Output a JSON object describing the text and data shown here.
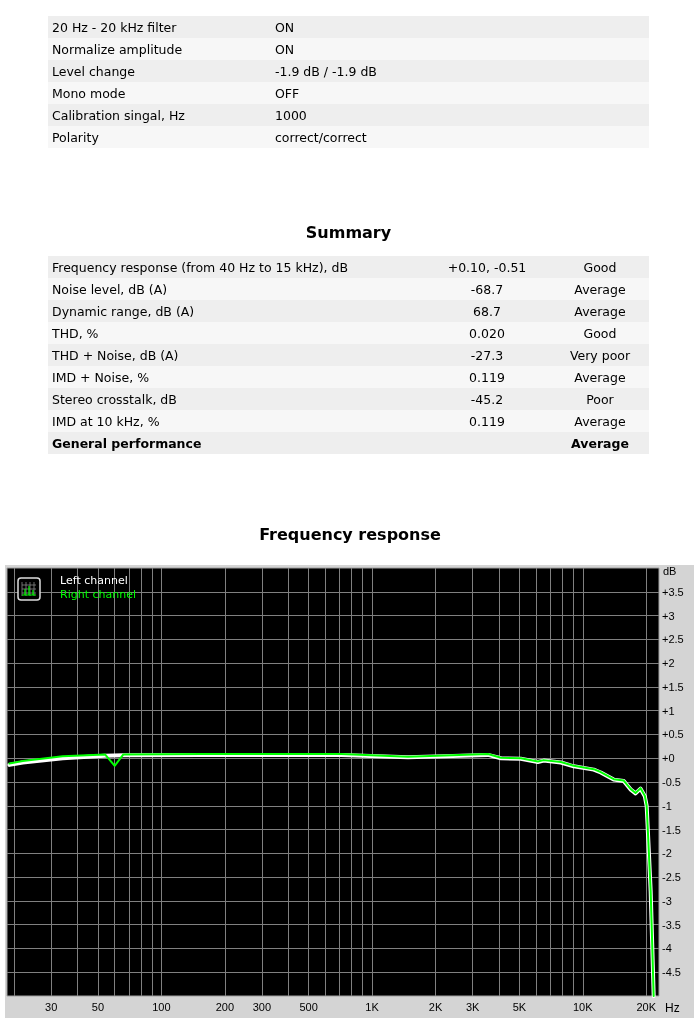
{
  "chart_data": [
    {
      "type": "other",
      "categories": [
        "20 Hz - 20 kHz filter",
        "Normalize amplitude",
        "Level change",
        "Mono mode",
        "Calibration singal, Hz",
        "Polarity"
      ],
      "cell_labels": [
        [
          "ON"
        ],
        [
          "ON"
        ],
        [
          "-1.9 dB / -1.9 dB"
        ],
        [
          "OFF"
        ],
        [
          "1000"
        ],
        [
          "correct/correct"
        ]
      ]
    },
    {
      "type": "other",
      "title": "Summary",
      "categories": [
        "Frequency response (from 40 Hz to 15 kHz), dB",
        "Noise level, dB (A)",
        "Dynamic range, dB (A)",
        "THD, %",
        "THD + Noise, dB (A)",
        "IMD + Noise, %",
        "Stereo crosstalk, dB",
        "IMD at 10 kHz, %",
        "General performance"
      ],
      "cell_labels": [
        [
          "+0.10, -0.51",
          "Good"
        ],
        [
          "-68.7",
          "Average"
        ],
        [
          "68.7",
          "Average"
        ],
        [
          "0.020",
          "Good"
        ],
        [
          "-27.3",
          "Very poor"
        ],
        [
          "0.119",
          "Average"
        ],
        [
          "-45.2",
          "Poor"
        ],
        [
          "0.119",
          "Average"
        ],
        [
          null,
          "Average"
        ]
      ]
    },
    {
      "type": "line",
      "title": "Frequency response",
      "xlabel": "Hz",
      "ylabel": "dB",
      "log": "x",
      "grid": true,
      "legend": "top left",
      "marker": "none",
      "line_style": "solid",
      "xlim": [
        18.5,
        23000
      ],
      "xticks": [
        {
          "value": 20,
          "label": null
        },
        30,
        {
          "value": 40,
          "label": null
        },
        50,
        {
          "value": 60,
          "label": null
        },
        {
          "value": 70,
          "label": null
        },
        {
          "value": 80,
          "label": null
        },
        {
          "value": 90,
          "label": null
        },
        100,
        200,
        300,
        {
          "value": 400,
          "label": null
        },
        500,
        {
          "value": 600,
          "label": null
        },
        {
          "value": 700,
          "label": null
        },
        {
          "value": 800,
          "label": null
        },
        {
          "value": 900,
          "label": null
        },
        {
          "value": 1000,
          "label": "1K"
        },
        {
          "value": 2000,
          "label": "2K"
        },
        {
          "value": 3000,
          "label": "3K"
        },
        {
          "value": 4000,
          "label": null
        },
        {
          "value": 5000,
          "label": "5K"
        },
        {
          "value": 6000,
          "label": null
        },
        {
          "value": 7000,
          "label": null
        },
        {
          "value": 8000,
          "label": null
        },
        {
          "value": 9000,
          "label": null
        },
        {
          "value": 10000,
          "label": "10K"
        },
        {
          "value": 20000,
          "label": "20K"
        }
      ],
      "ylim": [
        -5,
        4
      ],
      "yticks": [
        {
          "value": -4.5,
          "label": "-4.5"
        },
        {
          "value": -4,
          "label": "-4"
        },
        {
          "value": -3.5,
          "label": "-3.5"
        },
        {
          "value": -3,
          "label": "-3"
        },
        {
          "value": -2.5,
          "label": "-2.5"
        },
        {
          "value": -2,
          "label": "-2"
        },
        {
          "value": -1.5,
          "label": "-1.5"
        },
        {
          "value": -1,
          "label": "-1"
        },
        {
          "value": -0.5,
          "label": "-0.5"
        },
        {
          "value": 0,
          "label": "+0"
        },
        {
          "value": 0.5,
          "label": "+0.5"
        },
        {
          "value": 1,
          "label": "+1"
        },
        {
          "value": 1.5,
          "label": "+1.5"
        },
        {
          "value": 2,
          "label": "+2"
        },
        {
          "value": 2.5,
          "label": "+2.5"
        },
        {
          "value": 3,
          "label": "+3"
        },
        {
          "value": 3.5,
          "label": "+3.5"
        }
      ],
      "series": [
        {
          "name": "Left channel",
          "color": "#ffffff",
          "x": [
            19,
            22,
            34,
            54,
            66,
            155,
            461,
            713,
            1480,
            3550,
            4090,
            5080,
            6120,
            6520,
            7870,
            9060,
            11270,
            12170,
            14020,
            15640,
            16900,
            17800,
            18800,
            19700,
            20100,
            20300,
            21000,
            21700
          ],
          "values": [
            -0.14,
            -0.09,
            0.0,
            0.05,
            0.06,
            0.07,
            0.07,
            0.07,
            0.02,
            0.07,
            0.0,
            -0.01,
            -0.08,
            -0.05,
            -0.09,
            -0.17,
            -0.24,
            -0.3,
            -0.45,
            -0.48,
            -0.66,
            -0.74,
            -0.64,
            -0.8,
            -1.0,
            -1.4,
            -2.8,
            -5
          ]
        },
        {
          "name": "Right channel",
          "color": "#00ff00",
          "x": [
            19,
            22,
            34,
            54,
            60,
            66,
            155,
            461,
            713,
            1480,
            3550,
            4090,
            5080,
            6120,
            6520,
            7870,
            9060,
            11270,
            12170,
            14020,
            15640,
            16900,
            17800,
            18800,
            19700,
            20100,
            20300,
            21000,
            21700
          ],
          "values": [
            -0.11,
            -0.06,
            0.04,
            0.08,
            -0.16,
            0.08,
            0.09,
            0.09,
            0.09,
            0.03,
            0.09,
            0.01,
            0.0,
            -0.07,
            -0.04,
            -0.08,
            -0.16,
            -0.23,
            -0.29,
            -0.44,
            -0.47,
            -0.65,
            -0.73,
            -0.63,
            -0.79,
            -1.0,
            -1.4,
            -2.8,
            -5
          ]
        }
      ]
    }
  ]
}
